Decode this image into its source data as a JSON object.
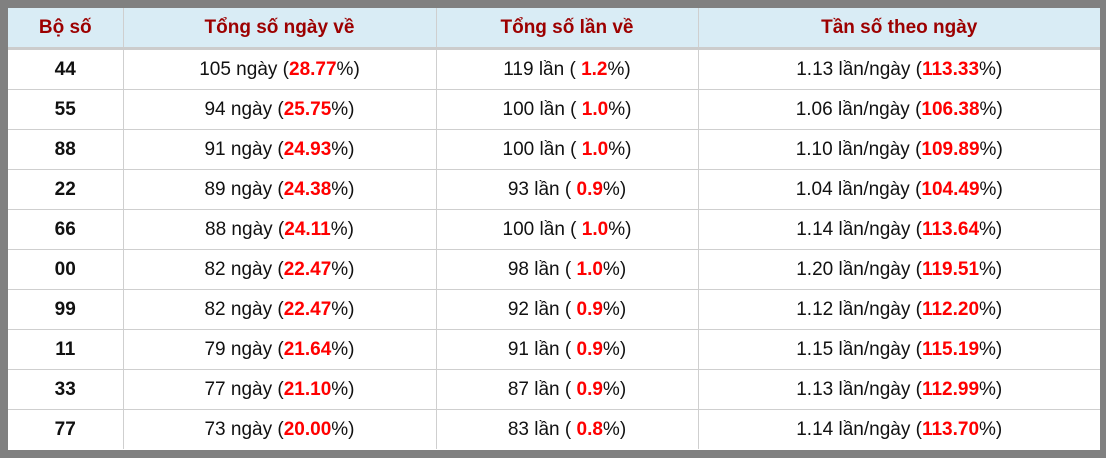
{
  "headers": [
    "Bộ số",
    "Tổng số ngày về",
    "Tổng số lần về",
    "Tần số theo ngày"
  ],
  "accent_color": "#ff0000",
  "rows": [
    {
      "bo": "44",
      "days": "105",
      "days_pct": "28.77",
      "times": "119",
      "times_pct": "1.2",
      "freq": "1.13",
      "freq_pct": "113.33"
    },
    {
      "bo": "55",
      "days": "94",
      "days_pct": "25.75",
      "times": "100",
      "times_pct": "1.0",
      "freq": "1.06",
      "freq_pct": "106.38"
    },
    {
      "bo": "88",
      "days": "91",
      "days_pct": "24.93",
      "times": "100",
      "times_pct": "1.0",
      "freq": "1.10",
      "freq_pct": "109.89"
    },
    {
      "bo": "22",
      "days": "89",
      "days_pct": "24.38",
      "times": "93",
      "times_pct": "0.9",
      "freq": "1.04",
      "freq_pct": "104.49"
    },
    {
      "bo": "66",
      "days": "88",
      "days_pct": "24.11",
      "times": "100",
      "times_pct": "1.0",
      "freq": "1.14",
      "freq_pct": "113.64"
    },
    {
      "bo": "00",
      "days": "82",
      "days_pct": "22.47",
      "times": "98",
      "times_pct": "1.0",
      "freq": "1.20",
      "freq_pct": "119.51"
    },
    {
      "bo": "99",
      "days": "82",
      "days_pct": "22.47",
      "times": "92",
      "times_pct": "0.9",
      "freq": "1.12",
      "freq_pct": "112.20"
    },
    {
      "bo": "11",
      "days": "79",
      "days_pct": "21.64",
      "times": "91",
      "times_pct": "0.9",
      "freq": "1.15",
      "freq_pct": "115.19"
    },
    {
      "bo": "33",
      "days": "77",
      "days_pct": "21.10",
      "times": "87",
      "times_pct": "0.9",
      "freq": "1.13",
      "freq_pct": "112.99"
    },
    {
      "bo": "77",
      "days": "73",
      "days_pct": "20.00",
      "times": "83",
      "times_pct": "0.8",
      "freq": "1.14",
      "freq_pct": "113.70"
    }
  ]
}
